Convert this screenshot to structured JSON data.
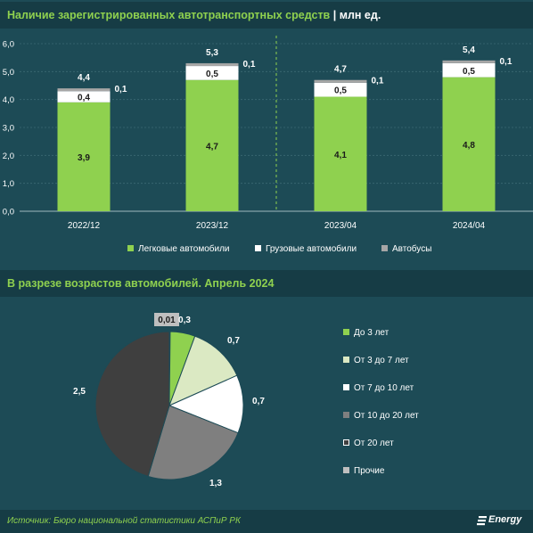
{
  "chart1": {
    "title": "Наличие зарегистрированных автотранспортных средств",
    "unit": "млн ед."
  },
  "chart2": {
    "title": "В разрезе возрастов автомобилей. Апрель 2024"
  },
  "source": "Источник: Бюро национальной статистики АСПиР РК",
  "brand": "Energy",
  "colors": {
    "background": "#1d4b56",
    "title_bar": "#163c45",
    "accent_green": "#8fd14f",
    "cars": "#8fd14f",
    "trucks": "#ffffff",
    "buses": "#a6a6a6"
  },
  "chart_data": [
    {
      "type": "bar",
      "stacked": true,
      "title": "Наличие зарегистрированных автотранспортных средств | млн ед.",
      "categories": [
        "2022/12",
        "2023/12",
        "2023/04",
        "2024/04"
      ],
      "series": [
        {
          "name": "Легковые автомобили",
          "values": [
            3.9,
            4.7,
            4.1,
            4.8
          ],
          "labels": [
            "3,9",
            "4,7",
            "4,1",
            "4,8"
          ],
          "color": "#8fd14f"
        },
        {
          "name": "Грузовые автомобили",
          "values": [
            0.4,
            0.5,
            0.5,
            0.5
          ],
          "labels": [
            "0,4",
            "0,5",
            "0,5",
            "0,5"
          ],
          "color": "#ffffff"
        },
        {
          "name": "Автобусы",
          "values": [
            0.1,
            0.1,
            0.1,
            0.1
          ],
          "labels": [
            "0,1",
            "0,1",
            "0,1",
            "0,1"
          ],
          "color": "#a6a6a6"
        }
      ],
      "totals": [
        4.4,
        5.3,
        4.7,
        5.4
      ],
      "total_labels": [
        "4,4",
        "5,3",
        "4,7",
        "5,4"
      ],
      "ylim": [
        0,
        6
      ],
      "yticks": [
        0,
        1,
        2,
        3,
        4,
        5,
        6
      ],
      "ytick_labels": [
        "0,0",
        "1,0",
        "2,0",
        "3,0",
        "4,0",
        "5,0",
        "6,0"
      ],
      "grid": true,
      "legend": "bottom",
      "separator_after_category": 1
    },
    {
      "type": "pie",
      "title": "В разрезе возрастов автомобилей. Апрель 2024",
      "slices": [
        {
          "label": "До 3 лет",
          "value": 0.3,
          "value_label": "0,3",
          "color": "#8fd14f"
        },
        {
          "label": "От 3 до 7 лет",
          "value": 0.7,
          "value_label": "0,7",
          "color": "#dbe9c3"
        },
        {
          "label": "От 7 до 10 лет",
          "value": 0.7,
          "value_label": "0,7",
          "color": "#ffffff"
        },
        {
          "label": "От 10 до 20 лет",
          "value": 1.3,
          "value_label": "1,3",
          "color": "#7f7f7f"
        },
        {
          "label": "От 20 лет",
          "value": 2.5,
          "value_label": "2,5",
          "color": "#3f3f3f"
        },
        {
          "label": "Прочие",
          "value": 0.01,
          "value_label": "0,01",
          "color": "#bfbfbf"
        }
      ],
      "legend": "right"
    }
  ]
}
